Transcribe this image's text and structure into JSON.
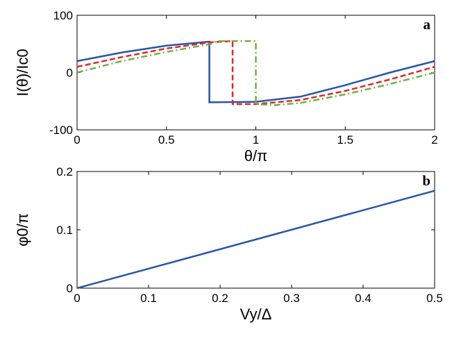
{
  "chart_data": [
    {
      "type": "line",
      "panel_label": "a",
      "xlabel": "θ/π",
      "ylabel": "I(θ)/Ic0",
      "xlim": [
        0,
        2
      ],
      "xticks": [
        0,
        0.5,
        1,
        1.5,
        2
      ],
      "ylim": [
        -100,
        100
      ],
      "yticks": [
        -100,
        0,
        100
      ],
      "series": [
        {
          "color": "#2456a6",
          "style": "solid",
          "x": [
            0,
            0.25,
            0.5,
            0.74,
            0.74,
            1.0,
            1.25,
            1.5,
            1.75,
            2
          ],
          "values": [
            20,
            35,
            47,
            54,
            -52,
            -51,
            -42,
            -22,
            0,
            20
          ]
        },
        {
          "color": "#e0262b",
          "style": "dashed",
          "x": [
            0,
            0.25,
            0.5,
            0.75,
            0.87,
            0.87,
            1.0,
            1.25,
            1.5,
            1.75,
            2
          ],
          "values": [
            10,
            27,
            42,
            53,
            55,
            -55,
            -55,
            -48,
            -32,
            -12,
            10
          ]
        },
        {
          "color": "#6db33f",
          "style": "dashdot",
          "x": [
            0,
            0.25,
            0.5,
            0.75,
            0.78,
            1.0,
            1.0,
            1.1,
            1.25,
            1.5,
            1.75,
            2
          ],
          "values": [
            0,
            20,
            36,
            50,
            55,
            55,
            -55,
            -57,
            -53,
            -38,
            -20,
            0
          ]
        }
      ]
    },
    {
      "type": "line",
      "panel_label": "b",
      "xlabel": "Vy/Δ",
      "ylabel": "φ0/π",
      "xlim": [
        0,
        0.5
      ],
      "xticks": [
        0,
        0.1,
        0.2,
        0.3,
        0.4,
        0.5
      ],
      "ylim": [
        0,
        0.2
      ],
      "yticks": [
        0,
        0.1,
        0.2
      ],
      "series": [
        {
          "color": "#2456a6",
          "style": "solid",
          "x": [
            0,
            0.5
          ],
          "values": [
            0,
            0.167
          ]
        }
      ]
    }
  ]
}
